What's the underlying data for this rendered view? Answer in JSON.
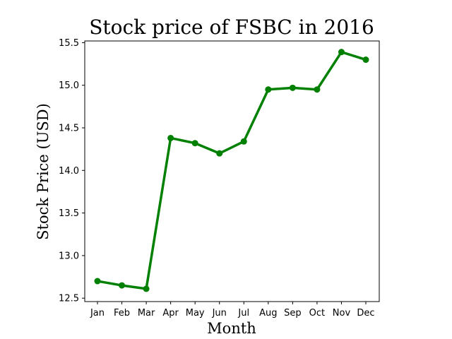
{
  "chart_data": {
    "type": "line",
    "title": "Stock price of FSBC in 2016",
    "xlabel": "Month",
    "ylabel": "Stock Price (USD)",
    "categories": [
      "Jan",
      "Feb",
      "Mar",
      "Apr",
      "May",
      "Jun",
      "Jul",
      "Aug",
      "Sep",
      "Oct",
      "Nov",
      "Dec"
    ],
    "values": [
      12.7,
      12.65,
      12.61,
      14.38,
      14.32,
      14.2,
      14.34,
      14.95,
      14.97,
      14.95,
      15.39,
      15.3
    ],
    "ylim": [
      12.46,
      15.52
    ],
    "yticks": [
      "12.5",
      "13.0",
      "13.5",
      "14.0",
      "14.5",
      "15.0",
      "15.5"
    ],
    "grid": false,
    "legend": "none",
    "line_color": "#008000"
  }
}
